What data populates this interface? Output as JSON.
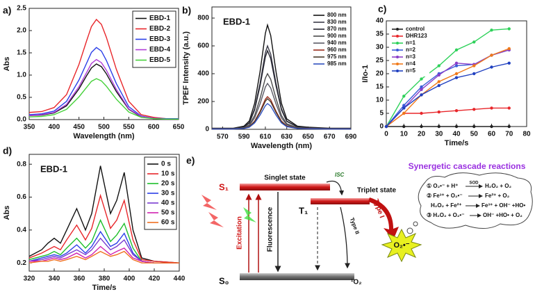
{
  "chart_data": [
    {
      "type": "line",
      "panel_label": "a)",
      "xlabel": "Wavelength (nm)",
      "ylabel": "Abs",
      "legend": "upper right",
      "x": [
        350,
        375,
        400,
        425,
        450,
        465,
        475,
        485,
        495,
        505,
        525,
        550,
        575,
        600,
        625,
        650
      ],
      "series": [
        {
          "name": "EBD-1",
          "color": "#111111",
          "values": [
            0.09,
            0.1,
            0.15,
            0.31,
            0.69,
            0.98,
            1.16,
            1.25,
            1.19,
            1.03,
            0.63,
            0.23,
            0.06,
            0.03,
            0.01,
            0.01
          ]
        },
        {
          "name": "EBD-2",
          "color": "#e8262a",
          "values": [
            0.16,
            0.18,
            0.27,
            0.56,
            1.24,
            1.76,
            2.09,
            2.25,
            2.14,
            1.85,
            1.13,
            0.41,
            0.11,
            0.05,
            0.02,
            0.02
          ]
        },
        {
          "name": "EBD-3",
          "color": "#2a3ee8",
          "values": [
            0.11,
            0.13,
            0.19,
            0.41,
            0.89,
            1.26,
            1.51,
            1.62,
            1.54,
            1.33,
            0.81,
            0.29,
            0.08,
            0.03,
            0.02,
            0.02
          ]
        },
        {
          "name": "EBD-4",
          "color": "#b03cd8",
          "values": [
            0.09,
            0.11,
            0.16,
            0.34,
            0.74,
            1.05,
            1.26,
            1.35,
            1.28,
            1.11,
            0.68,
            0.24,
            0.07,
            0.03,
            0.01,
            0.01
          ]
        },
        {
          "name": "EBD-5",
          "color": "#46d13a",
          "values": [
            0.06,
            0.07,
            0.11,
            0.23,
            0.51,
            0.72,
            0.86,
            0.92,
            0.87,
            0.75,
            0.46,
            0.17,
            0.05,
            0.02,
            0.01,
            0.01
          ]
        }
      ],
      "xlim": [
        350,
        650
      ],
      "xticks": [
        350,
        400,
        450,
        500,
        550,
        600,
        650
      ],
      "ylim": [
        0,
        2.5
      ],
      "yticks": [
        {
          "value": 0,
          "label": "0.0"
        },
        0.5,
        {
          "value": 1,
          "label": "1.0"
        },
        1.5,
        {
          "value": 2,
          "label": "2.0"
        },
        2.5
      ]
    },
    {
      "type": "line",
      "panel_label": "b)",
      "annotation": "EBD-1",
      "xlabel": "Wavelength (nm)",
      "ylabel": "TPEF Intensity (a.u.)",
      "legend": "upper right",
      "x": [
        560,
        570,
        580,
        590,
        595,
        600,
        605,
        610,
        612,
        615,
        620,
        625,
        630,
        640,
        650,
        670,
        690
      ],
      "series": [
        {
          "name": "800 nm",
          "color": "#111111",
          "values": [
            8,
            8,
            8,
            23,
            60,
            188,
            413,
            690,
            750,
            675,
            413,
            188,
            75,
            23,
            15,
            8,
            8
          ]
        },
        {
          "name": "830 nm",
          "color": "#3a3a48",
          "values": [
            6,
            6,
            6,
            18,
            48,
            150,
            330,
            552,
            600,
            540,
            330,
            150,
            60,
            18,
            12,
            6,
            6
          ]
        },
        {
          "name": "870 nm",
          "color": "#252530",
          "values": [
            6,
            6,
            6,
            17,
            45,
            141,
            311,
            520,
            565,
            509,
            311,
            141,
            57,
            17,
            11,
            6,
            6
          ]
        },
        {
          "name": "900 nm",
          "color": "#4a4a4a",
          "values": [
            4,
            4,
            4,
            12,
            32,
            100,
            220,
            368,
            400,
            360,
            220,
            100,
            40,
            12,
            8,
            4,
            4
          ]
        },
        {
          "name": "940 nm",
          "color": "#5a5a66",
          "values": [
            3,
            3,
            3,
            10,
            26,
            83,
            182,
            304,
            330,
            297,
            182,
            83,
            33,
            10,
            7,
            3,
            3
          ]
        },
        {
          "name": "960 nm",
          "color": "#9a2c1c",
          "values": [
            2,
            2,
            2,
            7,
            19,
            59,
            129,
            216,
            235,
            212,
            129,
            59,
            24,
            7,
            5,
            2,
            2
          ]
        },
        {
          "name": "975 nm",
          "color": "#4a3a2a",
          "values": [
            2,
            2,
            2,
            7,
            18,
            55,
            121,
            202,
            220,
            198,
            121,
            55,
            22,
            7,
            4,
            2,
            2
          ]
        },
        {
          "name": "985 nm",
          "color": "#3050c0",
          "values": [
            2,
            2,
            2,
            6,
            15,
            46,
            102,
            170,
            185,
            167,
            102,
            46,
            19,
            6,
            4,
            2,
            2
          ]
        }
      ],
      "xlim": [
        560,
        690
      ],
      "xticks": [
        570,
        590,
        610,
        630,
        650,
        670,
        690
      ],
      "ylim": [
        0,
        880
      ],
      "yticks": [
        0,
        200,
        400,
        600,
        800
      ]
    },
    {
      "type": "line",
      "panel_label": "c)",
      "xlabel": "Time/s",
      "ylabel": "I/Io-1",
      "legend": "upper left",
      "marker": "circle",
      "x": [
        0,
        10,
        20,
        30,
        40,
        50,
        60,
        70
      ],
      "series": [
        {
          "name": "control",
          "color": "#222222",
          "values": [
            0,
            0,
            0,
            0,
            0,
            0,
            0,
            0
          ]
        },
        {
          "name": "DHR123",
          "color": "#e8262a",
          "values": [
            0,
            5,
            5,
            5.5,
            6,
            6.5,
            7,
            7
          ]
        },
        {
          "name": "n=1",
          "color": "#2ed15a",
          "values": [
            0,
            11.5,
            18,
            23,
            29,
            32,
            36.5,
            37
          ]
        },
        {
          "name": "n=2",
          "color": "#3a5ad8",
          "values": [
            0,
            8,
            15,
            20,
            23,
            23.5,
            27,
            29
          ]
        },
        {
          "name": "n=3",
          "color": "#8a3ec8",
          "values": [
            0,
            7,
            14,
            19.5,
            24,
            23.5,
            27,
            29
          ]
        },
        {
          "name": "n=4",
          "color": "#f07a1a",
          "values": [
            0,
            5,
            12,
            17,
            20,
            23,
            27,
            29.5
          ]
        },
        {
          "name": "n=5",
          "color": "#2040c0",
          "values": [
            0,
            7,
            12,
            15.5,
            18.5,
            20,
            22.5,
            24
          ]
        }
      ],
      "xlim": [
        0,
        80
      ],
      "xticks": [
        0,
        10,
        20,
        30,
        40,
        50,
        60,
        70,
        80
      ],
      "ylim": [
        0,
        40
      ],
      "yticks": [
        0,
        5,
        10,
        15,
        20,
        25,
        30,
        35,
        40
      ]
    },
    {
      "type": "line",
      "panel_label": "d)",
      "annotation": "EBD-1",
      "xlabel": "Time/s",
      "ylabel": "Abs",
      "legend": "upper right",
      "x": [
        320,
        330,
        335,
        340,
        345,
        350,
        358,
        365,
        370,
        377,
        385,
        390,
        396,
        403,
        410,
        420,
        440
      ],
      "series": [
        {
          "name": "0 s",
          "color": "#111111",
          "values": [
            0.24,
            0.28,
            0.32,
            0.35,
            0.32,
            0.4,
            0.53,
            0.4,
            0.5,
            0.79,
            0.5,
            0.58,
            0.75,
            0.4,
            0.23,
            0.21,
            0.2
          ]
        },
        {
          "name": "10 s",
          "color": "#e8262a",
          "values": [
            0.23,
            0.26,
            0.28,
            0.3,
            0.28,
            0.34,
            0.43,
            0.34,
            0.41,
            0.61,
            0.41,
            0.46,
            0.58,
            0.34,
            0.22,
            0.21,
            0.2
          ]
        },
        {
          "name": "20 s",
          "color": "#1dbf2a",
          "values": [
            0.22,
            0.24,
            0.25,
            0.27,
            0.25,
            0.29,
            0.35,
            0.29,
            0.33,
            0.46,
            0.33,
            0.37,
            0.44,
            0.29,
            0.21,
            0.2,
            0.2
          ]
        },
        {
          "name": "30 s",
          "color": "#2a3ee8",
          "values": [
            0.21,
            0.23,
            0.24,
            0.25,
            0.24,
            0.26,
            0.31,
            0.26,
            0.3,
            0.39,
            0.3,
            0.32,
            0.38,
            0.26,
            0.21,
            0.2,
            0.2
          ]
        },
        {
          "name": "40 s",
          "color": "#7a3ad0",
          "values": [
            0.21,
            0.22,
            0.23,
            0.24,
            0.23,
            0.25,
            0.28,
            0.25,
            0.28,
            0.35,
            0.28,
            0.3,
            0.34,
            0.25,
            0.21,
            0.2,
            0.2
          ]
        },
        {
          "name": "50 s",
          "color": "#d020b0",
          "values": [
            0.21,
            0.21,
            0.22,
            0.23,
            0.22,
            0.23,
            0.26,
            0.23,
            0.25,
            0.3,
            0.25,
            0.27,
            0.29,
            0.23,
            0.21,
            0.2,
            0.2
          ]
        },
        {
          "name": "60 s",
          "color": "#f07020",
          "values": [
            0.2,
            0.21,
            0.21,
            0.22,
            0.21,
            0.22,
            0.24,
            0.22,
            0.24,
            0.27,
            0.24,
            0.25,
            0.27,
            0.22,
            0.2,
            0.2,
            0.2
          ]
        }
      ],
      "xlim": [
        320,
        440
      ],
      "xticks": [
        320,
        340,
        360,
        380,
        400,
        420,
        440
      ],
      "ylim": [
        0.15,
        0.86
      ],
      "yticks": [
        0.2,
        0.4,
        0.6,
        0.8
      ]
    }
  ],
  "diagram": {
    "panel_label": "e)",
    "singlet_label": "S₁",
    "singlet_state": "Singlet state",
    "isc": "ISC",
    "triplet_label": "T₁",
    "triplet_state": "Triplet state",
    "ground_label": "S₀",
    "excitation": "Excitation",
    "fluorescence": "Fluorescence",
    "type_1": "Type I",
    "type_2": "Type II",
    "singlet_oxygen": "¹O₂",
    "superoxide": "O₂•⁻",
    "cascade_title": "Synergetic cascade reactions",
    "reactions": [
      {
        "left": "① O₂•⁻ + H⁺",
        "catalyst": "SOD",
        "right": "H₂O₂ + O₂"
      },
      {
        "left": "② Fe³⁺ + O₂•⁻",
        "right": "Fe²⁺ + O₂"
      },
      {
        "left": "H₂O₂ + Fe²⁺",
        "right": "Fe³⁺ + OH⁻ +HO•"
      },
      {
        "left": "③ H₂O₂ + O₂•⁻",
        "right": "OH⁻ +HO• + O₂"
      }
    ]
  }
}
